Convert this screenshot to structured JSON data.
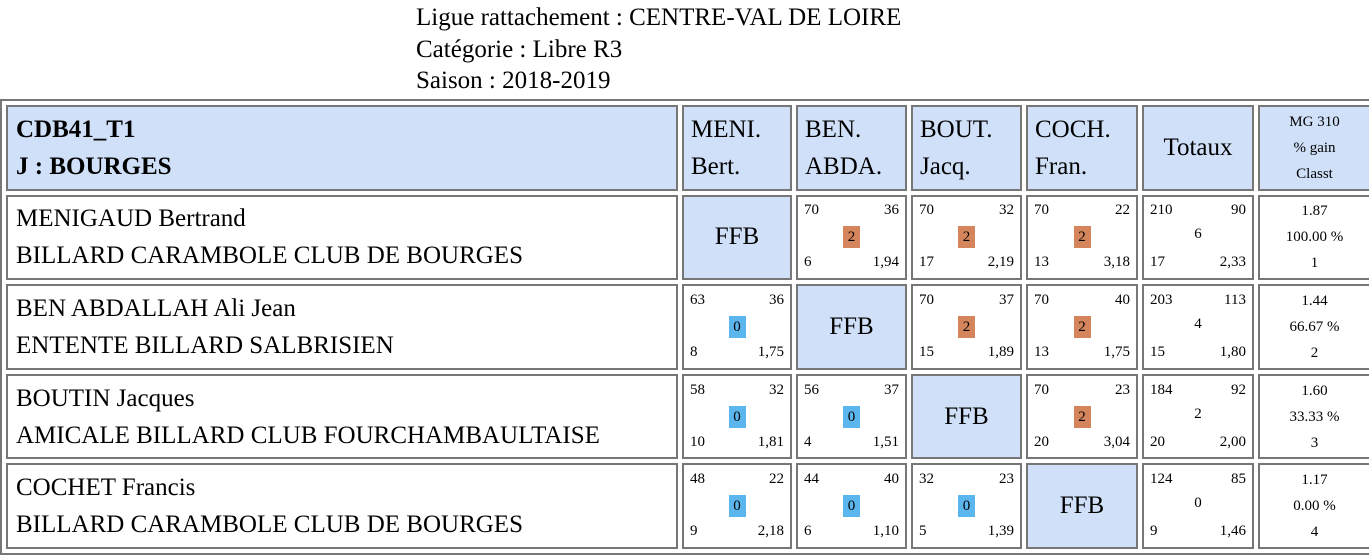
{
  "header": {
    "line1": "Ligue rattachement : CENTRE-VAL DE LOIRE",
    "line2": "Catégorie : Libre R3",
    "line3": "Saison : 2018-2019"
  },
  "table": {
    "title1": "CDB41_T1",
    "title2": "J : BOURGES",
    "columns": [
      {
        "l1": "MENI.",
        "l2": "Bert."
      },
      {
        "l1": "BEN.",
        "l2": "ABDA."
      },
      {
        "l1": "BOUT.",
        "l2": "Jacq."
      },
      {
        "l1": "COCH.",
        "l2": "Fran."
      }
    ],
    "totals_label": "Totaux",
    "mg_label1": "MG 310",
    "mg_label2": "% gain",
    "mg_label3": "Classt",
    "ffb_label": "FFB",
    "players": [
      {
        "name": "MENIGAUD Bertrand",
        "club": "BILLARD CARAMBOLE CLUB DE BOURGES",
        "matches": [
          null,
          {
            "pts": "70",
            "serie": "36",
            "score": "2",
            "reprises": "6",
            "moy": "1,94",
            "win": true
          },
          {
            "pts": "70",
            "serie": "32",
            "score": "2",
            "reprises": "17",
            "moy": "2,19",
            "win": true
          },
          {
            "pts": "70",
            "serie": "22",
            "score": "2",
            "reprises": "13",
            "moy": "3,18",
            "win": true
          }
        ],
        "totals": {
          "pts": "210",
          "serie": "90",
          "score": "6",
          "reprises": "17",
          "moy": "2,33"
        },
        "result": {
          "mg": "1.87",
          "gain": "100.00 %",
          "rank": "1"
        }
      },
      {
        "name": "BEN ABDALLAH Ali Jean",
        "club": "ENTENTE BILLARD SALBRISIEN",
        "matches": [
          {
            "pts": "63",
            "serie": "36",
            "score": "0",
            "reprises": "8",
            "moy": "1,75",
            "win": false
          },
          null,
          {
            "pts": "70",
            "serie": "37",
            "score": "2",
            "reprises": "15",
            "moy": "1,89",
            "win": true
          },
          {
            "pts": "70",
            "serie": "40",
            "score": "2",
            "reprises": "13",
            "moy": "1,75",
            "win": true
          }
        ],
        "totals": {
          "pts": "203",
          "serie": "113",
          "score": "4",
          "reprises": "15",
          "moy": "1,80"
        },
        "result": {
          "mg": "1.44",
          "gain": "66.67 %",
          "rank": "2"
        }
      },
      {
        "name": "BOUTIN Jacques",
        "club": "AMICALE BILLARD CLUB FOURCHAMBAULTAISE",
        "matches": [
          {
            "pts": "58",
            "serie": "32",
            "score": "0",
            "reprises": "10",
            "moy": "1,81",
            "win": false
          },
          {
            "pts": "56",
            "serie": "37",
            "score": "0",
            "reprises": "4",
            "moy": "1,51",
            "win": false
          },
          null,
          {
            "pts": "70",
            "serie": "23",
            "score": "2",
            "reprises": "20",
            "moy": "3,04",
            "win": true
          }
        ],
        "totals": {
          "pts": "184",
          "serie": "92",
          "score": "2",
          "reprises": "20",
          "moy": "2,00"
        },
        "result": {
          "mg": "1.60",
          "gain": "33.33 %",
          "rank": "3"
        }
      },
      {
        "name": "COCHET Francis",
        "club": "BILLARD CARAMBOLE CLUB DE BOURGES",
        "matches": [
          {
            "pts": "48",
            "serie": "22",
            "score": "0",
            "reprises": "9",
            "moy": "2,18",
            "win": false
          },
          {
            "pts": "44",
            "serie": "40",
            "score": "0",
            "reprises": "6",
            "moy": "1,10",
            "win": false
          },
          {
            "pts": "32",
            "serie": "23",
            "score": "0",
            "reprises": "5",
            "moy": "1,39",
            "win": false
          },
          null
        ],
        "totals": {
          "pts": "124",
          "serie": "85",
          "score": "0",
          "reprises": "9",
          "moy": "1,46"
        },
        "result": {
          "mg": "1.17",
          "gain": "0.00 %",
          "rank": "4"
        }
      }
    ]
  },
  "colors": {
    "win": "#d4855c",
    "loss": "#5cb6ee",
    "header_bg": "#cfe0f8",
    "border": "#777777"
  }
}
